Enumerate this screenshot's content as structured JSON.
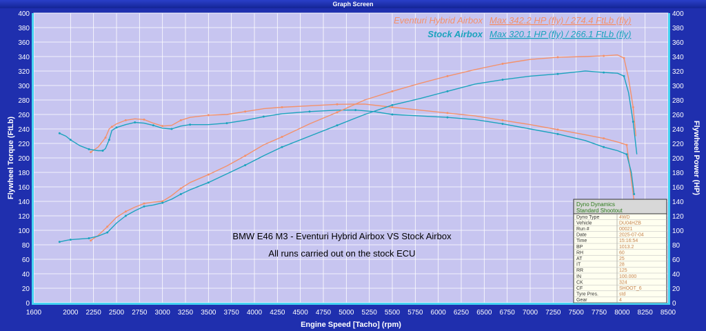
{
  "window": {
    "title": "Graph Screen"
  },
  "chart_data": {
    "type": "line",
    "xlabel": "Engine Speed [Tacho] (rpm)",
    "ylabel_left": "Flywheel Torque (FtLb)",
    "ylabel_right": "Flywheel Power (HP)",
    "xlim": [
      1600,
      8500
    ],
    "ylim_left": [
      0,
      400
    ],
    "ylim_right": [
      0,
      400
    ],
    "x_ticks": [
      1600,
      2000,
      2250,
      2500,
      2750,
      3000,
      3250,
      3500,
      3750,
      4000,
      4250,
      4500,
      4750,
      5000,
      5250,
      5500,
      5750,
      6000,
      6250,
      6500,
      6750,
      7000,
      7250,
      7500,
      7750,
      8000,
      8250,
      8500
    ],
    "y_ticks": [
      0,
      20,
      40,
      60,
      80,
      100,
      120,
      140,
      160,
      180,
      200,
      220,
      240,
      260,
      280,
      300,
      320,
      340,
      360,
      380,
      400
    ],
    "grid": true,
    "legend": [
      {
        "name": "Eventuri Hybrid Airbox",
        "summary": "Max 342.2 HP (fly) / 274.4 FtLb (fly)",
        "color": "#f4916a"
      },
      {
        "name": "Stock Airbox",
        "summary": "Max 320.1 HP (fly) / 266.1 FtLb (fly)",
        "color": "#1ba3bd"
      }
    ],
    "annotations": [
      "BMW E46 M3 - Eventuri Hybrid Airbox VS Stock Airbox",
      "All runs carried out on the stock ECU"
    ],
    "series": [
      {
        "name": "Eventuri Hybrid Airbox",
        "quantity": "Torque",
        "color": "#f4916a",
        "x": [
          2220,
          2300,
          2380,
          2420,
          2450,
          2500,
          2600,
          2700,
          2800,
          2900,
          3000,
          3100,
          3200,
          3300,
          3500,
          3700,
          3900,
          4100,
          4300,
          4600,
          4900,
          5200,
          5500,
          5800,
          6100,
          6400,
          6700,
          7000,
          7300,
          7600,
          7800,
          7950,
          8050,
          8100,
          8130
        ],
        "y": [
          208,
          215,
          228,
          240,
          243,
          247,
          252,
          254,
          253,
          248,
          244,
          245,
          252,
          256,
          259,
          260,
          264,
          268,
          270,
          272,
          274,
          274.4,
          270,
          266,
          262,
          258,
          252,
          246,
          239,
          232,
          227,
          222,
          218,
          170,
          140
        ]
      },
      {
        "name": "Stock Airbox",
        "quantity": "Torque",
        "color": "#1ba3bd",
        "x": [
          1880,
          1950,
          2000,
          2100,
          2200,
          2300,
          2350,
          2380,
          2420,
          2450,
          2500,
          2600,
          2700,
          2800,
          2900,
          3000,
          3100,
          3200,
          3300,
          3500,
          3700,
          3900,
          4100,
          4300,
          4600,
          4900,
          5100,
          5300,
          5500,
          5800,
          6100,
          6400,
          6700,
          7000,
          7300,
          7600,
          7800,
          7950,
          8050,
          8100,
          8130
        ],
        "y": [
          234,
          230,
          225,
          217,
          212,
          210,
          210,
          213,
          225,
          238,
          242,
          246,
          249,
          248,
          245,
          241,
          240,
          244,
          246,
          246,
          248,
          252,
          257,
          261,
          264,
          266,
          266.1,
          264,
          260,
          258,
          256,
          253,
          247,
          240,
          233,
          224,
          215,
          210,
          205,
          180,
          150
        ]
      },
      {
        "name": "Eventuri Hybrid Airbox",
        "quantity": "Power",
        "color": "#f4916a",
        "x": [
          2220,
          2300,
          2400,
          2500,
          2600,
          2700,
          2800,
          2900,
          3000,
          3100,
          3200,
          3300,
          3500,
          3700,
          3900,
          4100,
          4300,
          4600,
          4900,
          5200,
          5500,
          5800,
          6100,
          6400,
          6700,
          7000,
          7300,
          7600,
          7800,
          7950,
          8020,
          8070,
          8120,
          8150
        ],
        "y": [
          86,
          93,
          105,
          118,
          126,
          132,
          137,
          139,
          140,
          148,
          158,
          166,
          177,
          189,
          203,
          218,
          229,
          247,
          263,
          280,
          292,
          303,
          313,
          322,
          330,
          336,
          339,
          340,
          341,
          342.2,
          338,
          310,
          270,
          230
        ]
      },
      {
        "name": "Stock Airbox",
        "quantity": "Power",
        "color": "#1ba3bd",
        "x": [
          1880,
          1950,
          2000,
          2100,
          2200,
          2300,
          2400,
          2500,
          2600,
          2700,
          2800,
          2900,
          3000,
          3100,
          3200,
          3300,
          3500,
          3700,
          3900,
          4100,
          4300,
          4600,
          4900,
          5200,
          5500,
          5800,
          6100,
          6400,
          6700,
          7000,
          7300,
          7600,
          7800,
          7950,
          8020,
          8070,
          8120,
          8160
        ],
        "y": [
          84,
          86,
          87,
          88,
          89,
          92,
          97,
          110,
          120,
          127,
          133,
          135,
          138,
          143,
          150,
          156,
          166,
          178,
          190,
          203,
          215,
          230,
          245,
          260,
          273,
          282,
          292,
          302,
          308,
          313,
          316,
          320.1,
          318,
          317,
          313,
          290,
          250,
          205
        ]
      }
    ],
    "info_box": {
      "title_line1": "Dyno Dynamics",
      "title_line2": "Standard Shootout",
      "rows": [
        {
          "label": "Dyno Type",
          "value": "4WD"
        },
        {
          "label": "Vehicle",
          "value": "DU04HZB"
        },
        {
          "label": "Run #",
          "value": "00021"
        },
        {
          "label": "Date",
          "value": "2025-07-04"
        },
        {
          "label": "Time",
          "value": "15:16:54"
        },
        {
          "label": "BP",
          "value": "1013.2"
        },
        {
          "label": "RH",
          "value": "60"
        },
        {
          "label": "AT",
          "value": "25"
        },
        {
          "label": "IT",
          "value": "28"
        },
        {
          "label": "RR",
          "value": "125"
        },
        {
          "label": "IN",
          "value": "100.000"
        },
        {
          "label": "CK",
          "value": "324"
        },
        {
          "label": "CF",
          "value": "SHOOT_6"
        },
        {
          "label": "Tyre Pres.",
          "value": "std"
        },
        {
          "label": "Gear",
          "value": "4"
        }
      ]
    }
  }
}
